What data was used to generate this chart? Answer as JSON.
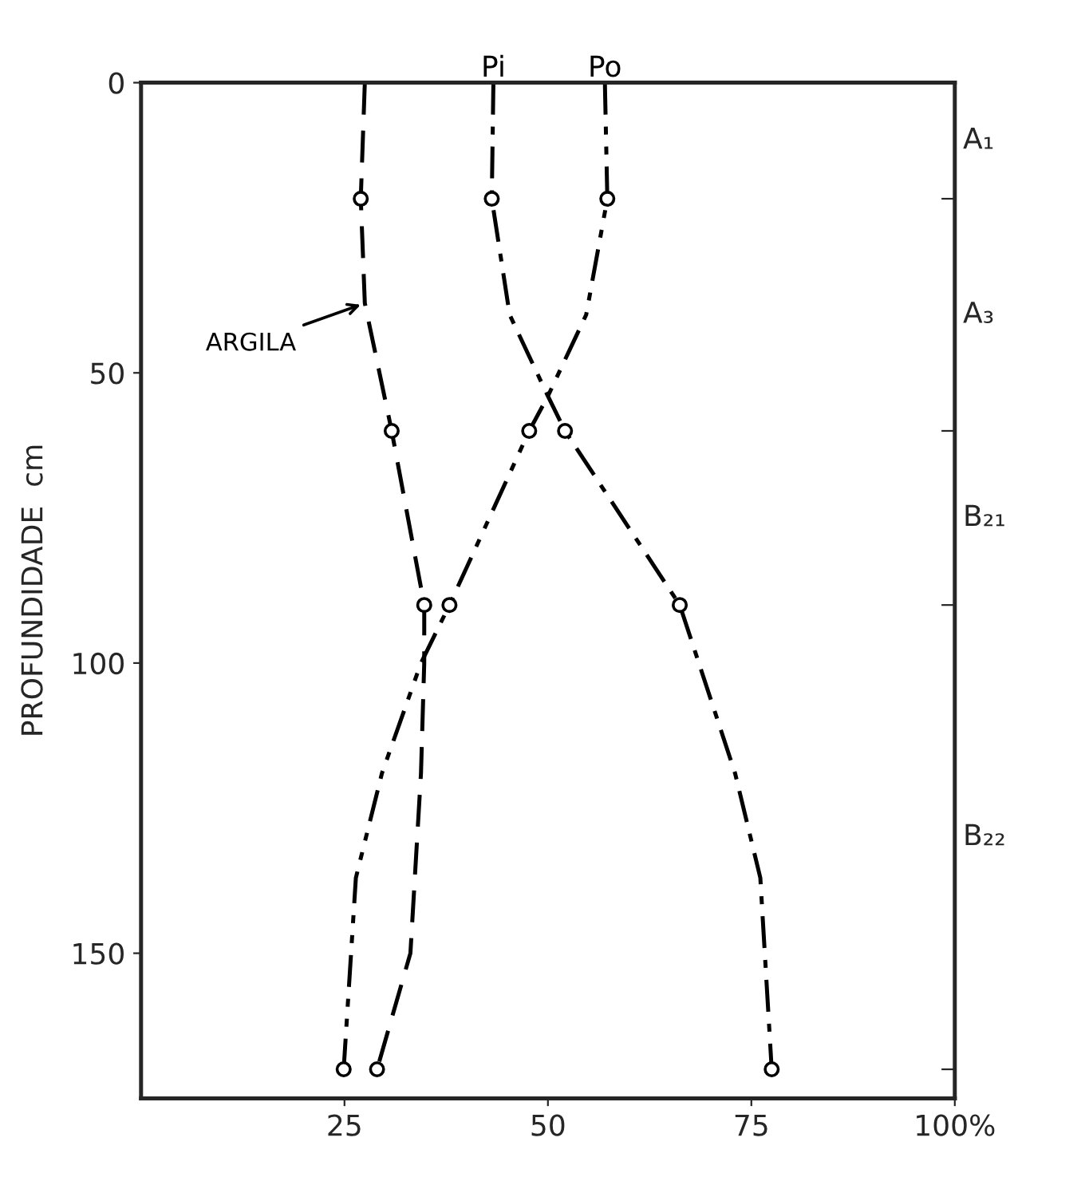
{
  "chart_data": {
    "type": "line",
    "xlabel": null,
    "ylabel": "PROFUNDIDADE  cm",
    "xlim": [
      0,
      100
    ],
    "xticks": [
      25,
      50,
      75,
      {
        "value": 100,
        "label": "100%"
      }
    ],
    "ylim": [
      175,
      0
    ],
    "yticks": [
      0,
      50,
      100,
      150
    ],
    "grid": false,
    "legend": false,
    "series": [
      {
        "name": "ARGILA",
        "color": "#000000",
        "line_style": "dashed",
        "marker": "none",
        "x": [
          27.5,
          27,
          27.5,
          30.8,
          34.8,
          34.8,
          34.4,
          33.1,
          29.0
        ],
        "values": [
          0,
          20,
          38,
          60,
          90,
          100,
          119,
          150,
          170
        ]
      },
      {
        "name": "Pi",
        "color": "#000000",
        "line_style": "dashdot",
        "marker": "none",
        "x": [
          43.3,
          43.1,
          45.3,
          50,
          52.1,
          66.2,
          73,
          76.1,
          77.5
        ],
        "values": [
          0,
          20,
          40,
          54,
          60,
          90,
          119,
          137,
          170
        ]
      },
      {
        "name": "Po",
        "color": "#000000",
        "line_style": "dashdotdot",
        "marker": "none",
        "x": [
          57,
          57.3,
          54.7,
          50,
          47.7,
          37.9,
          34.4,
          29.6,
          26.4,
          24.9
        ],
        "values": [
          0,
          20,
          40,
          54,
          60,
          90,
          100,
          119,
          137,
          170
        ]
      },
      {
        "type": "scatter",
        "color": "#000000",
        "marker": "circle",
        "x": [
          27,
          30.8,
          34.8,
          29.0
        ],
        "values": [
          20,
          60,
          90,
          170
        ]
      },
      {
        "type": "scatter",
        "color": "#000000",
        "marker": "circle",
        "x": [
          43.1,
          52.1,
          66.2,
          77.5
        ],
        "values": [
          20,
          60,
          90,
          170
        ]
      },
      {
        "type": "scatter",
        "color": "#000000",
        "marker": "circle",
        "x": [
          57.3,
          47.7,
          37.9,
          24.9
        ],
        "values": [
          20,
          60,
          90,
          170
        ]
      }
    ],
    "annotations": [
      "A₁",
      "A₃",
      "B₂₁",
      "B₂₂"
    ]
  }
}
